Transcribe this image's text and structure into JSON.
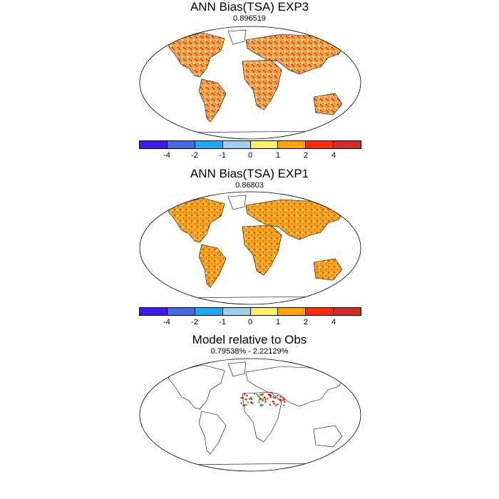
{
  "panels": [
    {
      "title": "ANN Bias(TSA) EXP3",
      "subtitle": "0.896519"
    },
    {
      "title": "ANN Bias(TSA) EXP1",
      "subtitle": "0.86803"
    },
    {
      "title": "Model relative to Obs",
      "subtitle": "0.79538% - 2.22129%"
    }
  ],
  "colorbar": {
    "colors": [
      "#3a1af0",
      "#4169e1",
      "#19a9f5",
      "#9ccfee",
      "#ffef6e",
      "#ffa10a",
      "#ff2a0a",
      "#d32c2c"
    ],
    "tick_labels": [
      "-4",
      "-2",
      "-1",
      "0",
      "1",
      "2",
      "4"
    ]
  },
  "colors": {
    "coast": "#000000",
    "land_fill": "#f3a64a",
    "scatter_red": "#ff0000",
    "scatter_green": "#22aa22"
  }
}
